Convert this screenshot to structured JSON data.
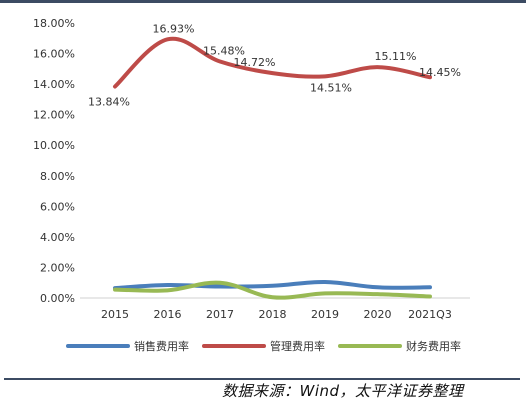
{
  "chart_data": {
    "type": "line",
    "smooth": true,
    "categories": [
      "2015",
      "2016",
      "2017",
      "2018",
      "2019",
      "2020",
      "2021Q3"
    ],
    "ylim": [
      0,
      18
    ],
    "yticks": [
      "0.00%",
      "2.00%",
      "4.00%",
      "6.00%",
      "8.00%",
      "10.00%",
      "12.00%",
      "14.00%",
      "16.00%",
      "18.00%"
    ],
    "grid": false,
    "legend_position": "bottom",
    "series": [
      {
        "name": "销售费用率",
        "color": "#4a7ebb",
        "values": [
          0.65,
          0.85,
          0.75,
          0.8,
          1.05,
          0.7,
          0.7
        ]
      },
      {
        "name": "管理费用率",
        "color": "#be4b48",
        "values": [
          13.84,
          16.93,
          15.48,
          14.72,
          14.51,
          15.11,
          14.45
        ]
      },
      {
        "name": "财务费用率",
        "color": "#98b954",
        "values": [
          0.55,
          0.5,
          1.0,
          0.05,
          0.3,
          0.25,
          0.1
        ]
      }
    ],
    "data_labels": [
      {
        "series": 1,
        "index": 0,
        "text": "13.84%"
      },
      {
        "series": 1,
        "index": 1,
        "text": "16.93%"
      },
      {
        "series": 1,
        "index": 2,
        "text": "15.48%"
      },
      {
        "series": 1,
        "index": 3,
        "text": "14.72%"
      },
      {
        "series": 1,
        "index": 4,
        "text": "14.51%"
      },
      {
        "series": 1,
        "index": 5,
        "text": "15.11%"
      },
      {
        "series": 1,
        "index": 6,
        "text": "14.45%"
      }
    ]
  },
  "source": "数据来源：Wind，太平洋证券整理"
}
